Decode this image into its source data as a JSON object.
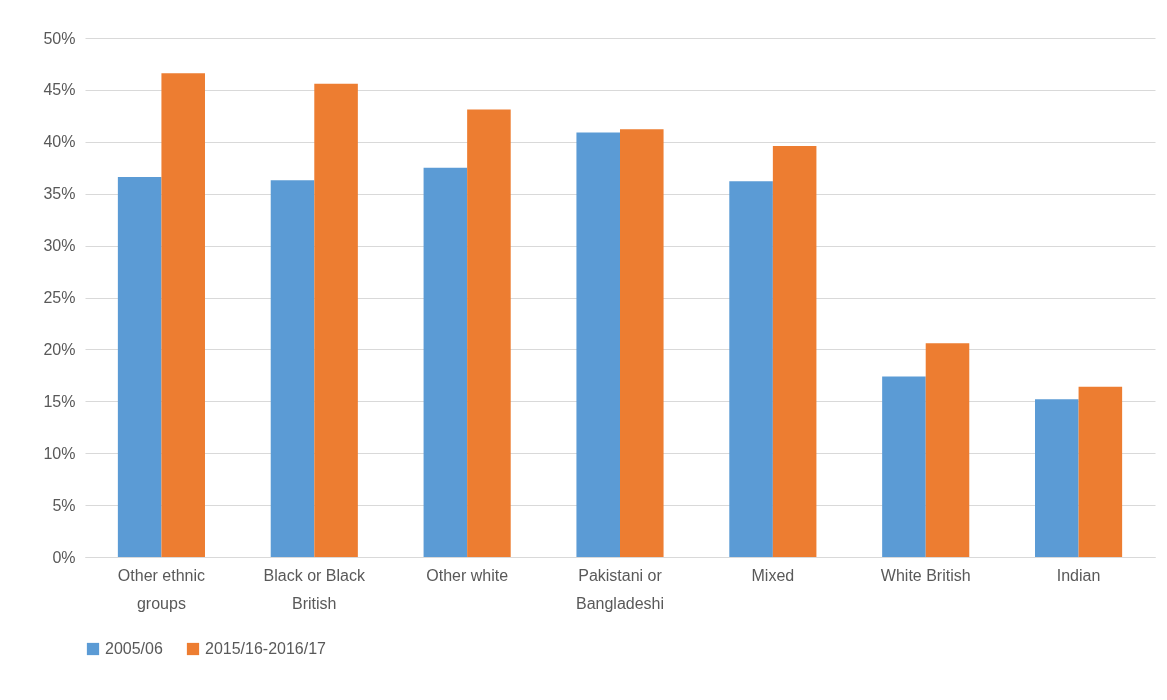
{
  "chart_data": {
    "type": "bar",
    "categories": [
      "Other ethnic groups",
      "Black or Black British",
      "Other white",
      "Pakistani or Bangladeshi",
      "Mixed",
      "White British",
      "Indian"
    ],
    "series": [
      {
        "name": "2005/06",
        "color": "#5b9bd5",
        "values": [
          36.6,
          36.3,
          37.5,
          40.9,
          36.2,
          17.4,
          15.2
        ]
      },
      {
        "name": "2015/16-2016/17",
        "color": "#ed7d31",
        "values": [
          46.6,
          45.6,
          43.1,
          41.2,
          39.6,
          20.6,
          16.4
        ]
      }
    ],
    "ylim": [
      0,
      50
    ],
    "yticks": [
      {
        "value": 0,
        "label": "0%"
      },
      {
        "value": 5,
        "label": "5%"
      },
      {
        "value": 10,
        "label": "10%"
      },
      {
        "value": 15,
        "label": "15%"
      },
      {
        "value": 20,
        "label": "20%"
      },
      {
        "value": 25,
        "label": "25%"
      },
      {
        "value": 30,
        "label": "30%"
      },
      {
        "value": 35,
        "label": "35%"
      },
      {
        "value": 40,
        "label": "40%"
      },
      {
        "value": 45,
        "label": "45%"
      },
      {
        "value": 50,
        "label": "50%"
      }
    ],
    "grid": "y",
    "legend": "bottom"
  }
}
